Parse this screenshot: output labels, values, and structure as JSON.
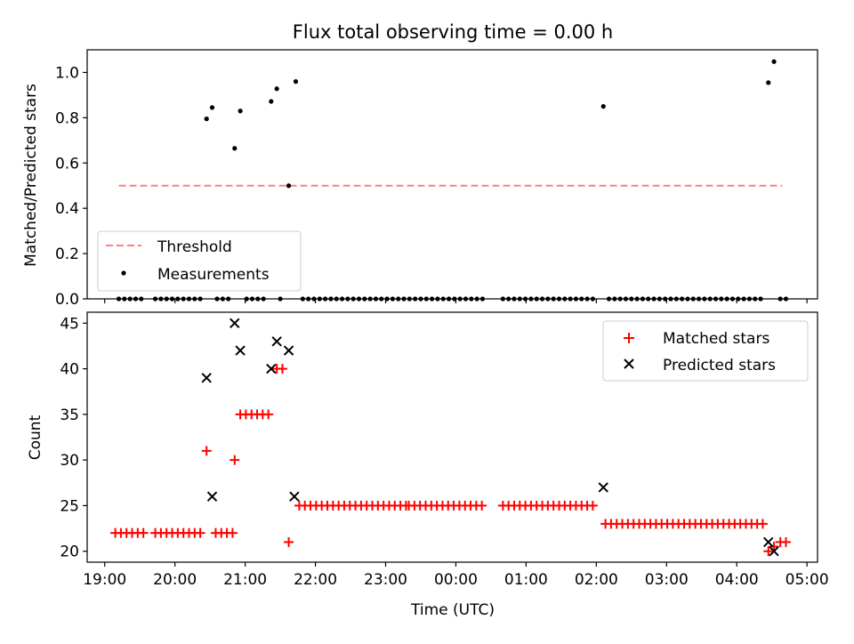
{
  "chart_data": [
    {
      "type": "scatter",
      "panel": "top",
      "title": "Flux total observing time = 0.00 h",
      "xlabel": "",
      "ylabel": "Matched/Predicted stars",
      "xlim": [
        18.75,
        29.15
      ],
      "ylim": [
        0,
        1.1
      ],
      "yticks": [
        0.0,
        0.2,
        0.4,
        0.6,
        0.8,
        1.0
      ],
      "ytick_labels": [
        "0.0",
        "0.2",
        "0.4",
        "0.6",
        "0.8",
        "1.0"
      ],
      "xticks": [
        19,
        20,
        21,
        22,
        23,
        24,
        25,
        26,
        27,
        28,
        29
      ],
      "legend": {
        "position": "lower-left",
        "entries": [
          "Threshold",
          "Measurements"
        ]
      },
      "threshold": {
        "name": "Threshold",
        "value": 0.5,
        "x": [
          19.2,
          28.65
        ],
        "color": "#ff7f7f"
      },
      "series": [
        {
          "name": "Measurements",
          "color": "#000000",
          "points": [
            [
              20.45,
              0.795
            ],
            [
              20.53,
              0.845
            ],
            [
              20.85,
              0.665
            ],
            [
              20.93,
              0.83
            ],
            [
              21.37,
              0.872
            ],
            [
              21.45,
              0.928
            ],
            [
              21.62,
              0.5
            ],
            [
              21.72,
              0.96
            ],
            [
              26.1,
              0.85
            ],
            [
              28.45,
              0.955
            ],
            [
              28.53,
              1.048
            ]
          ],
          "zero_ranges": [
            [
              19.2,
              19.55
            ],
            [
              19.72,
              20.42
            ],
            [
              20.6,
              20.8
            ],
            [
              21.02,
              21.32
            ],
            [
              21.5,
              21.55
            ],
            [
              21.82,
              24.4
            ],
            [
              24.67,
              26.02
            ],
            [
              26.18,
              28.4
            ],
            [
              28.62,
              28.7
            ]
          ],
          "zero_step": 0.08
        }
      ]
    },
    {
      "type": "scatter",
      "panel": "bottom",
      "title": "",
      "xlabel": "Time (UTC)",
      "ylabel": "Count",
      "xlim": [
        18.75,
        29.15
      ],
      "ylim": [
        18.8,
        46.2
      ],
      "yticks": [
        20,
        25,
        30,
        35,
        40,
        45
      ],
      "ytick_labels": [
        "20",
        "25",
        "30",
        "35",
        "40",
        "45"
      ],
      "xticks": [
        19,
        20,
        21,
        22,
        23,
        24,
        25,
        26,
        27,
        28,
        29
      ],
      "xtick_labels": [
        "19:00",
        "20:00",
        "21:00",
        "22:00",
        "23:00",
        "00:00",
        "01:00",
        "02:00",
        "03:00",
        "04:00",
        "05:00"
      ],
      "legend": {
        "position": "top-right",
        "entries": [
          "Matched stars",
          "Predicted stars"
        ]
      },
      "series": [
        {
          "name": "Matched stars",
          "marker": "plus",
          "color": "#ff0000",
          "runs": [
            {
              "from": 19.15,
              "to": 19.55,
              "step": 0.08,
              "value": 22
            },
            {
              "from": 19.72,
              "to": 20.42,
              "step": 0.08,
              "value": 22
            },
            {
              "from": 20.58,
              "to": 20.82,
              "step": 0.08,
              "value": 22
            },
            {
              "from": 20.93,
              "to": 21.37,
              "step": 0.08,
              "value": 35
            },
            {
              "from": 21.77,
              "to": 23.3,
              "step": 0.08,
              "value": 25
            },
            {
              "from": 23.33,
              "to": 24.4,
              "step": 0.08,
              "value": 25
            },
            {
              "from": 24.67,
              "to": 26.02,
              "step": 0.08,
              "value": 25
            },
            {
              "from": 26.13,
              "to": 28.4,
              "step": 0.08,
              "value": 23
            },
            {
              "from": 28.62,
              "to": 28.7,
              "step": 0.08,
              "value": 21
            }
          ],
          "points": [
            [
              20.45,
              31
            ],
            [
              20.85,
              30
            ],
            [
              21.45,
              40
            ],
            [
              21.53,
              40
            ],
            [
              21.62,
              21
            ],
            [
              28.45,
              20
            ],
            [
              28.53,
              20.5
            ]
          ]
        },
        {
          "name": "Predicted stars",
          "marker": "x",
          "color": "#000000",
          "points": [
            [
              20.45,
              39
            ],
            [
              20.53,
              26
            ],
            [
              20.85,
              45
            ],
            [
              20.93,
              42
            ],
            [
              21.37,
              40
            ],
            [
              21.45,
              43
            ],
            [
              21.62,
              42
            ],
            [
              21.7,
              26
            ],
            [
              26.1,
              27
            ],
            [
              28.45,
              21
            ],
            [
              28.53,
              20
            ]
          ]
        }
      ]
    }
  ]
}
